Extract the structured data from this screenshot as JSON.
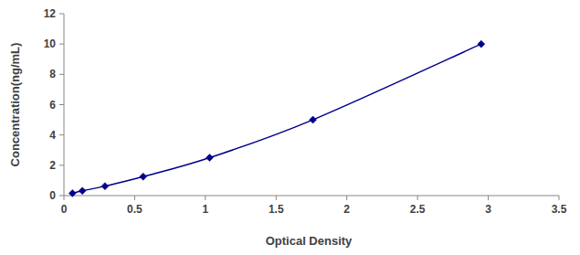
{
  "chart_data": {
    "type": "scatter",
    "x_label": "Optical Density",
    "y_label": "Concentration(ng/mL)",
    "x": [
      0.06,
      0.13,
      0.29,
      0.56,
      1.03,
      1.76,
      2.95
    ],
    "values": [
      0.156,
      0.312,
      0.625,
      1.25,
      2.5,
      5,
      10
    ],
    "color": "#00008b",
    "marker": "diamond",
    "line_style": "solid",
    "xlim": [
      0,
      3.5
    ],
    "xticks": [
      0,
      0.5,
      1,
      1.5,
      2,
      2.5,
      3,
      3.5
    ],
    "ylim": [
      0,
      12
    ],
    "yticks": [
      0,
      2,
      4,
      6,
      8,
      10,
      12
    ],
    "grid": false
  }
}
